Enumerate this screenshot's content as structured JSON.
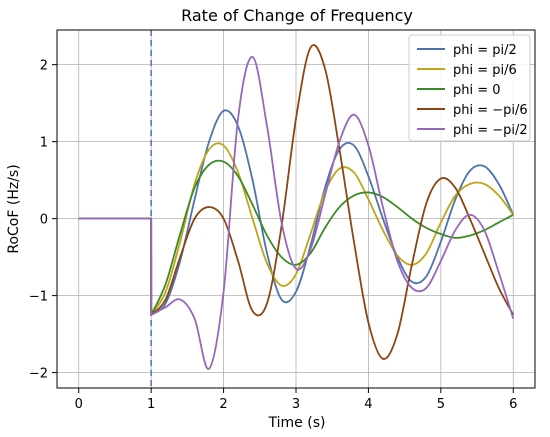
{
  "chart_data": {
    "type": "line",
    "title": "Rate of Change of Frequency",
    "xlabel": "Time (s)",
    "ylabel": "RoCoF (Hz/s)",
    "xlim": [
      -0.3,
      6.3
    ],
    "ylim": [
      -2.2,
      2.45
    ],
    "xticks": [
      0,
      1,
      2,
      3,
      4,
      5,
      6
    ],
    "yticks": [
      -2,
      -1,
      0,
      1,
      2
    ],
    "x_tick_labels": [
      "0",
      "1",
      "2",
      "3",
      "4",
      "5",
      "6"
    ],
    "y_tick_labels": [
      "−2",
      "−1",
      "0",
      "1",
      "2"
    ],
    "grid": true,
    "legend_position": "top-right",
    "vline": {
      "x": 1,
      "style": "dashed",
      "color": "#4c72b0"
    },
    "series": [
      {
        "name": "phi = pi/2",
        "color": "#4c72b0",
        "x": [
          0,
          1,
          1.001,
          1.2,
          1.4,
          1.6,
          1.8,
          2.0,
          2.2,
          2.4,
          2.6,
          2.8,
          3.0,
          3.2,
          3.4,
          3.6,
          3.8,
          4.0,
          4.2,
          4.4,
          4.6,
          4.8,
          5.0,
          5.2,
          5.4,
          5.6,
          5.8,
          6.0
        ],
        "y": [
          0,
          0,
          -1.25,
          -1.1,
          -0.55,
          0.25,
          1.0,
          1.4,
          1.2,
          0.5,
          -0.45,
          -1.05,
          -0.95,
          -0.35,
          0.4,
          0.9,
          0.95,
          0.55,
          0.0,
          -0.5,
          -0.82,
          -0.75,
          -0.3,
          0.25,
          0.62,
          0.68,
          0.45,
          0.05
        ]
      },
      {
        "name": "phi = pi/6",
        "color": "#bfa515",
        "x": [
          0,
          1,
          1.001,
          1.2,
          1.4,
          1.6,
          1.8,
          2.0,
          2.2,
          2.4,
          2.6,
          2.8,
          3.0,
          3.2,
          3.4,
          3.6,
          3.8,
          4.0,
          4.2,
          4.4,
          4.6,
          4.8,
          5.0,
          5.2,
          5.4,
          5.6,
          5.8,
          6.0
        ],
        "y": [
          0,
          0,
          -1.25,
          -0.95,
          -0.3,
          0.45,
          0.9,
          0.95,
          0.6,
          0.0,
          -0.58,
          -0.87,
          -0.72,
          -0.2,
          0.35,
          0.65,
          0.6,
          0.25,
          -0.15,
          -0.48,
          -0.6,
          -0.45,
          -0.05,
          0.3,
          0.45,
          0.45,
          0.3,
          0.05
        ]
      },
      {
        "name": "phi = 0",
        "color": "#3a8a25",
        "x": [
          0,
          1,
          1.001,
          1.2,
          1.4,
          1.6,
          1.8,
          2.0,
          2.2,
          2.4,
          2.6,
          2.8,
          3.0,
          3.2,
          3.4,
          3.6,
          3.8,
          4.0,
          4.2,
          4.4,
          4.6,
          4.8,
          5.0,
          5.2,
          5.4,
          5.6,
          5.8,
          6.0
        ],
        "y": [
          0,
          0,
          -1.25,
          -0.85,
          -0.2,
          0.4,
          0.7,
          0.74,
          0.55,
          0.18,
          -0.22,
          -0.5,
          -0.6,
          -0.45,
          -0.12,
          0.15,
          0.3,
          0.34,
          0.28,
          0.15,
          0.0,
          -0.12,
          -0.2,
          -0.25,
          -0.22,
          -0.15,
          -0.05,
          0.05
        ]
      },
      {
        "name": "phi = −pi/6",
        "color": "#8b4513",
        "x": [
          0,
          1,
          1.001,
          1.2,
          1.4,
          1.6,
          1.8,
          2.0,
          2.2,
          2.4,
          2.6,
          2.8,
          3.0,
          3.2,
          3.4,
          3.6,
          3.8,
          4.0,
          4.2,
          4.4,
          4.6,
          4.8,
          5.0,
          5.2,
          5.4,
          5.6,
          5.8,
          6.0
        ],
        "y": [
          0,
          0,
          -1.25,
          -1.05,
          -0.5,
          0.0,
          0.15,
          0.0,
          -0.55,
          -1.2,
          -1.1,
          -0.1,
          1.3,
          2.22,
          1.95,
          0.9,
          -0.3,
          -1.35,
          -1.82,
          -1.5,
          -0.6,
          0.2,
          0.52,
          0.4,
          0.0,
          -0.45,
          -0.9,
          -1.25
        ]
      },
      {
        "name": "phi = −pi/2",
        "color": "#9467bd",
        "x": [
          0,
          1,
          1.001,
          1.2,
          1.4,
          1.6,
          1.8,
          2.0,
          2.2,
          2.4,
          2.6,
          2.8,
          3.0,
          3.2,
          3.4,
          3.6,
          3.8,
          4.0,
          4.2,
          4.4,
          4.6,
          4.8,
          5.0,
          5.2,
          5.4,
          5.6,
          5.8,
          6.0
        ],
        "y": [
          0,
          0,
          -1.25,
          -1.15,
          -1.05,
          -1.3,
          -1.95,
          -0.95,
          1.3,
          2.1,
          1.2,
          -0.05,
          -0.65,
          -0.4,
          0.3,
          1.0,
          1.35,
          0.95,
          0.15,
          -0.55,
          -0.9,
          -0.9,
          -0.55,
          -0.15,
          0.05,
          -0.15,
          -0.7,
          -1.3
        ]
      }
    ]
  }
}
